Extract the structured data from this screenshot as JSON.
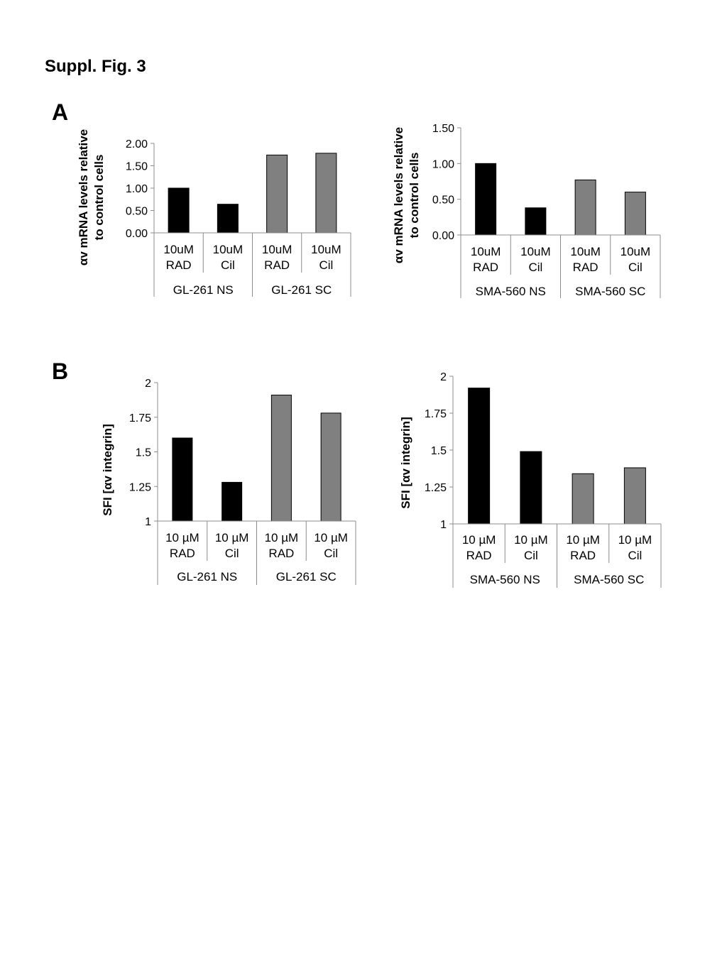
{
  "figure": {
    "title": "Suppl. Fig. 3",
    "panel_labels": [
      "A",
      "B"
    ]
  },
  "colors": {
    "ns_bar": "#000000",
    "sc_bar": "#808080",
    "axis": "#8c8c8c"
  },
  "chart_data": [
    {
      "type": "bar",
      "panel": "A",
      "ylabel_lines": [
        "αv mRNA levels relative",
        "to control cells"
      ],
      "ylim": [
        0,
        2
      ],
      "yticks": [
        "0.00",
        "0.50",
        "1.00",
        "1.50",
        "2.00"
      ],
      "ytick_values": [
        0,
        0.5,
        1.0,
        1.5,
        2.0
      ],
      "categories": [
        [
          "10uM",
          "RAD"
        ],
        [
          "10uM",
          "Cil"
        ],
        [
          "10uM",
          "RAD"
        ],
        [
          "10uM",
          "Cil"
        ]
      ],
      "groups": [
        "GL-261 NS",
        "GL-261 SC"
      ],
      "values": [
        1.0,
        0.64,
        1.74,
        1.78
      ],
      "bar_group": [
        "ns",
        "ns",
        "sc",
        "sc"
      ],
      "grid": false
    },
    {
      "type": "bar",
      "panel": "A",
      "ylabel_lines": [
        "αv mRNA levels relative",
        "to control cells"
      ],
      "ylim": [
        0,
        1.5
      ],
      "yticks": [
        "0.00",
        "0.50",
        "1.00",
        "1.50"
      ],
      "ytick_values": [
        0,
        0.5,
        1.0,
        1.5
      ],
      "categories": [
        [
          "10uM",
          "RAD"
        ],
        [
          "10uM",
          "Cil"
        ],
        [
          "10uM",
          "RAD"
        ],
        [
          "10uM",
          "Cil"
        ]
      ],
      "groups": [
        "SMA-560 NS",
        "SMA-560 SC"
      ],
      "values": [
        1.0,
        0.38,
        0.77,
        0.6
      ],
      "bar_group": [
        "ns",
        "ns",
        "sc",
        "sc"
      ],
      "grid": false
    },
    {
      "type": "bar",
      "panel": "B",
      "ylabel_lines": [
        "SFI [αv integrin]"
      ],
      "ylim": [
        1,
        2
      ],
      "yticks": [
        "1",
        "1.25",
        "1.5",
        "1.75",
        "2"
      ],
      "ytick_values": [
        1,
        1.25,
        1.5,
        1.75,
        2
      ],
      "categories": [
        [
          "10 µM",
          "RAD"
        ],
        [
          "10 µM",
          "Cil"
        ],
        [
          "10 µM",
          "RAD"
        ],
        [
          "10 µM",
          "Cil"
        ]
      ],
      "groups": [
        "GL-261 NS",
        "GL-261 SC"
      ],
      "values": [
        1.6,
        1.28,
        1.91,
        1.78
      ],
      "bar_group": [
        "ns",
        "ns",
        "sc",
        "sc"
      ],
      "grid": false
    },
    {
      "type": "bar",
      "panel": "B",
      "ylabel_lines": [
        "SFI [αv integrin]"
      ],
      "ylim": [
        1,
        2
      ],
      "yticks": [
        "1",
        "1.25",
        "1.5",
        "1.75",
        "2"
      ],
      "ytick_values": [
        1,
        1.25,
        1.5,
        1.75,
        2
      ],
      "categories": [
        [
          "10 µM",
          "RAD"
        ],
        [
          "10 µM",
          "Cil"
        ],
        [
          "10 µM",
          "RAD"
        ],
        [
          "10 µM",
          "Cil"
        ]
      ],
      "groups": [
        "SMA-560 NS",
        "SMA-560 SC"
      ],
      "values": [
        1.92,
        1.49,
        1.34,
        1.38
      ],
      "bar_group": [
        "ns",
        "ns",
        "sc",
        "sc"
      ],
      "grid": false
    }
  ]
}
